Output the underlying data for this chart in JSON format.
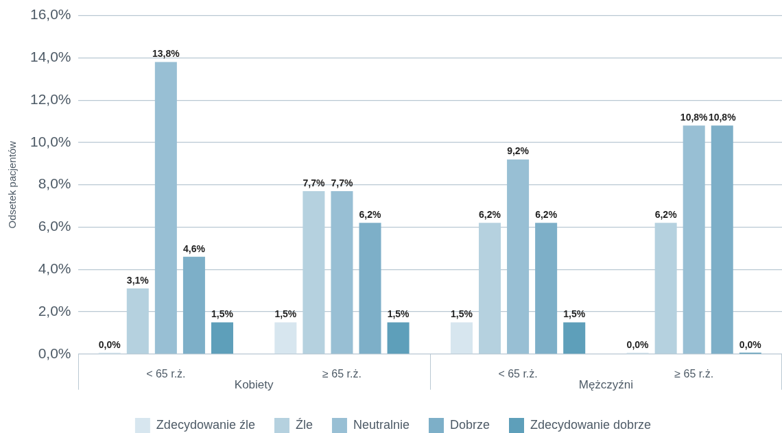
{
  "chart_data": {
    "type": "bar",
    "ylabel": "Odsetek pacjentów",
    "categories": [
      "< 65 r.ż.",
      "≥ 65 r.ż.",
      "< 65 r.ż.",
      "≥ 65 r.ż."
    ],
    "annotations": [
      "Kobiety",
      "Mężczyźni"
    ],
    "series": [
      {
        "name": "Zdecydowanie źle",
        "color": "#d7e6ef",
        "values": [
          0.0,
          1.5,
          1.5,
          0.0
        ],
        "value_labels": [
          "0,0%",
          "1,5%",
          "1,5%",
          "0,0%"
        ]
      },
      {
        "name": "Źle",
        "color": "#b5d1df",
        "values": [
          3.1,
          7.7,
          6.2,
          6.2
        ],
        "value_labels": [
          "3,1%",
          "7,7%",
          "6,2%",
          "6,2%"
        ]
      },
      {
        "name": "Neutralnie",
        "color": "#98bfd4",
        "values": [
          13.8,
          7.7,
          9.2,
          10.8
        ],
        "value_labels": [
          "13,8%",
          "7,7%",
          "9,2%",
          "10,8%"
        ]
      },
      {
        "name": "Dobrze",
        "color": "#7dafc8",
        "values": [
          4.6,
          6.2,
          6.2,
          10.8
        ],
        "value_labels": [
          "4,6%",
          "6,2%",
          "6,2%",
          "10,8%"
        ]
      },
      {
        "name": "Zdecydowanie dobrze",
        "color": "#5e9fba",
        "values": [
          1.5,
          1.5,
          1.5,
          0.0
        ],
        "value_labels": [
          "1,5%",
          "1,5%",
          "1,5%",
          "0,0%"
        ]
      }
    ],
    "ylim": [
      0,
      16
    ],
    "yticks": [
      {
        "value": 0,
        "label": "0,0%"
      },
      {
        "value": 2,
        "label": "2,0%"
      },
      {
        "value": 4,
        "label": "4,0%"
      },
      {
        "value": 6,
        "label": "6,0%"
      },
      {
        "value": 8,
        "label": "8,0%"
      },
      {
        "value": 10,
        "label": "10,0%"
      },
      {
        "value": 12,
        "label": "12,0%"
      },
      {
        "value": 14,
        "label": "14,0%"
      },
      {
        "value": 16,
        "label": "16,0%"
      }
    ],
    "grid": "y",
    "legend": "bottom"
  }
}
